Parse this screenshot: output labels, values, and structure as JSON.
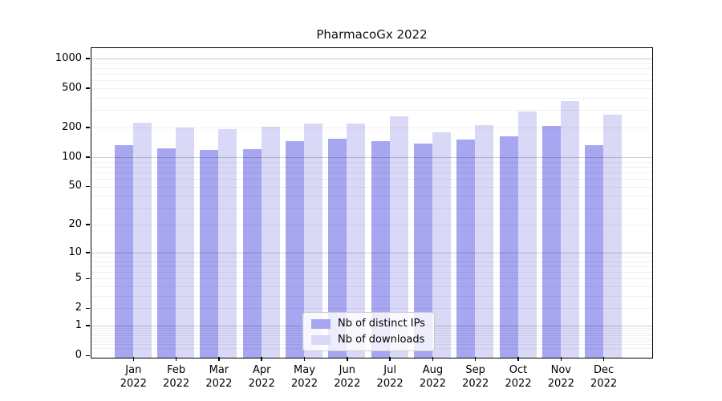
{
  "chart_data": {
    "type": "bar",
    "title": "PharmacoGx 2022",
    "categories": [
      "Jan",
      "Feb",
      "Mar",
      "Apr",
      "May",
      "Jun",
      "Jul",
      "Aug",
      "Sep",
      "Oct",
      "Nov",
      "Dec"
    ],
    "category_year": "2022",
    "series": [
      {
        "name": "Nb of distinct IPs",
        "color": "#a6a6f1",
        "values": [
          140,
          129,
          125,
          127,
          154,
          161,
          153,
          146,
          159,
          172,
          217,
          140
        ]
      },
      {
        "name": "Nb of downloads",
        "color": "#d9d9f7",
        "values": [
          237,
          209,
          204,
          216,
          230,
          230,
          276,
          188,
          224,
          307,
          388,
          286
        ]
      }
    ],
    "yscale": "log1p",
    "ylim": [
      0,
      1280
    ],
    "yticks": [
      0,
      1,
      2,
      5,
      10,
      20,
      50,
      100,
      200,
      500,
      1000
    ],
    "major_grid_ticks": [
      1,
      10,
      100,
      1000
    ],
    "grid": true,
    "legend_position": "lower center",
    "colors": {
      "background": "#ffffff",
      "axis": "#000000",
      "text": "#000000",
      "major_grid": "#d0d0d0",
      "minor_grid": "#f0f0f0",
      "legend_border": "#cccccc"
    }
  }
}
